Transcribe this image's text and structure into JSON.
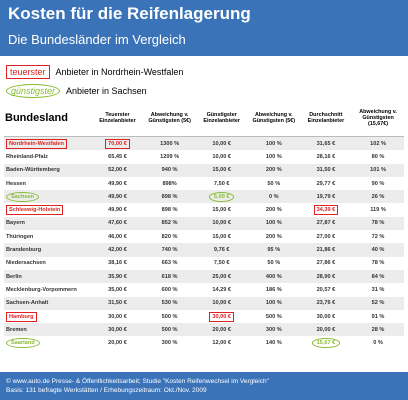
{
  "header": {
    "title": "Kosten für die Reifenlagerung",
    "subtitle": "Die Bundesländer im Vergleich"
  },
  "legend": [
    {
      "key": "teuerster",
      "text": "Anbieter in Nordrhein-Westfalen"
    },
    {
      "key": "günstigster",
      "text": "Anbieter in Sachsen"
    }
  ],
  "table": {
    "columns": [
      "Bundesland",
      "Teuerster Einzelanbieter",
      "Abweichung v. Günstigsten (5€)",
      "Günstigster Einzelanbieter",
      "Abweichung v. Günstigsten (5€)",
      "Durchschnitt Einzelanbieter",
      "Abweichung v. Günstigsten (15,67€)"
    ],
    "rows": [
      [
        "Nordrhein-Westfalen",
        "70,00 €",
        "1300 %",
        "10,00 €",
        "100 %",
        "31,65 €",
        "102 %"
      ],
      [
        "Rheinland-Pfalz",
        "65,45 €",
        "1209 %",
        "10,00 €",
        "100 %",
        "28,16 €",
        "80 %"
      ],
      [
        "Baden-Württemberg",
        "52,00 €",
        "940 %",
        "15,00 €",
        "200 %",
        "31,50 €",
        "101 %"
      ],
      [
        "Hessen",
        "49,90 €",
        "898%",
        "7,50 €",
        "50 %",
        "29,77 €",
        "90 %"
      ],
      [
        "Sachsen",
        "49,90 €",
        "898 %",
        "5,00 €",
        "0 %",
        "19,79 €",
        "26 %"
      ],
      [
        "Schleswig-Holstein",
        "49,90 €",
        "898 %",
        "15,00 €",
        "200 %",
        "34,39 €",
        "119 %"
      ],
      [
        "Bayern",
        "47,60 €",
        "852 %",
        "10,00 €",
        "100 %",
        "27,87 €",
        "78 %"
      ],
      [
        "Thüringen",
        "46,00 €",
        "820 %",
        "15,00 €",
        "200 %",
        "27,00 €",
        "72 %"
      ],
      [
        "Brandenburg",
        "42,00 €",
        "740 %",
        "9,76 €",
        "95 %",
        "21,86 €",
        "40 %"
      ],
      [
        "Niedersachsen",
        "38,16 €",
        "663 %",
        "7,50 €",
        "50 %",
        "27,86 €",
        "78 %"
      ],
      [
        "Berlin",
        "35,90 €",
        "618 %",
        "25,00 €",
        "400 %",
        "28,90 €",
        "84 %"
      ],
      [
        "Mecklenburg-Vorpommern",
        "35,00 €",
        "600 %",
        "14,29 €",
        "186 %",
        "20,57 €",
        "31 %"
      ],
      [
        "Sachsen-Anhalt",
        "31,50 €",
        "530 %",
        "10,00 €",
        "100 %",
        "23,76 €",
        "52 %"
      ],
      [
        "Hamburg",
        "30,00 €",
        "500 %",
        "30,00 €",
        "500 %",
        "30,00 €",
        "91 %"
      ],
      [
        "Bremen",
        "30,00 €",
        "500 %",
        "20,00 €",
        "300 %",
        "20,00 €",
        "28 %"
      ],
      [
        "Saarland",
        "20,00 €",
        "300 %",
        "12,00 €",
        "140 %",
        "15,67 €",
        "0 %"
      ]
    ]
  },
  "footer": [
    "© www.auto.de Presse- & Öffentlichkeitsarbeit; Studie \"Kosten Reifenwechsel im Vergleich\"",
    "Basis: 131 befragte Werkstätten / Erhebungszeitraum: Okt./Nov. 2009"
  ]
}
